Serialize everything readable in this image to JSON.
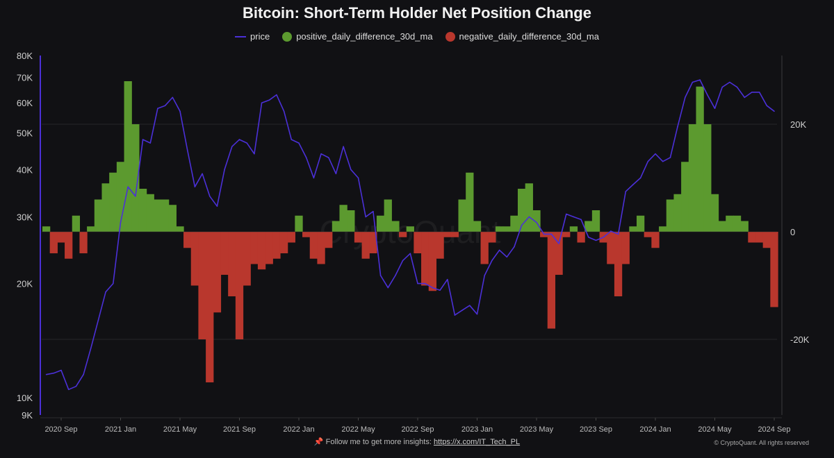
{
  "chart_data": {
    "type": "bar+line",
    "title": "Bitcoin: Short-Term Holder Net Position Change",
    "legend": [
      {
        "name": "price",
        "color": "#4b30d8"
      },
      {
        "name": "positive_daily_difference_30d_ma",
        "color": "#5c9a2f"
      },
      {
        "name": "negative_daily_difference_30d_ma",
        "color": "#b9372d"
      }
    ],
    "legend_placement": "top-center",
    "x_start": "2020-08-01",
    "x_step": "half-month",
    "x_ticks": [
      "2020 Sep",
      "2021 Jan",
      "2021 May",
      "2021 Sep",
      "2022 Jan",
      "2022 May",
      "2022 Sep",
      "2023 Jan",
      "2023 May",
      "2023 Sep",
      "2024 Jan",
      "2024 May",
      "2024 Sep"
    ],
    "left_axis": {
      "label": "price",
      "scale": "log",
      "range": [
        9000,
        80000
      ],
      "ticks": [
        80000,
        70000,
        60000,
        50000,
        40000,
        30000,
        20000,
        10000,
        9000
      ],
      "tick_labels": [
        "80K",
        "70K",
        "60K",
        "50K",
        "40K",
        "30K",
        "20K",
        "10K",
        "9K"
      ]
    },
    "right_axis": {
      "scale": "linear",
      "range_k": [
        -33,
        33
      ],
      "ticks": [
        20,
        0,
        -20
      ],
      "tick_labels": [
        "20K",
        "0",
        "-20K"
      ]
    },
    "price_k": [
      11.5,
      11.6,
      11.8,
      10.5,
      10.7,
      11.5,
      13.5,
      16,
      19,
      20,
      29,
      36,
      34,
      48,
      47,
      58,
      59,
      62,
      57,
      45,
      36,
      39,
      34,
      32,
      40,
      46,
      48,
      47,
      44,
      60,
      61,
      63,
      57,
      48,
      47,
      43,
      38,
      44,
      43,
      39,
      46,
      40,
      38,
      30,
      31,
      21,
      19.5,
      21,
      23,
      24,
      20,
      20,
      19.5,
      19.2,
      20.5,
      16.5,
      17,
      17.5,
      16.6,
      21,
      23,
      24.5,
      23.5,
      25,
      28.5,
      30,
      29,
      27,
      27,
      25.5,
      30.5,
      30,
      29.5,
      26.5,
      26,
      26.5,
      27.5,
      27,
      35,
      36.5,
      38,
      42,
      44,
      42,
      43,
      52,
      62,
      68,
      69,
      63,
      58,
      66,
      68,
      66,
      62,
      64,
      64,
      59,
      57
    ],
    "net_change_k": [
      1,
      -4,
      -2,
      -5,
      3,
      -4,
      1,
      6,
      9,
      11,
      13,
      28,
      20,
      8,
      7,
      6,
      6,
      5,
      1,
      -3,
      -10,
      -20,
      -28,
      -15,
      -8,
      -12,
      -20,
      -10,
      -6,
      -7,
      -6,
      -5,
      -4,
      -2,
      3,
      -1,
      -5,
      -6,
      -3,
      2,
      5,
      4,
      -2,
      -5,
      -4,
      3,
      6,
      2,
      -1,
      1,
      -4,
      -10,
      -11,
      -5,
      -1,
      -1,
      6,
      11,
      2,
      -6,
      -2,
      1,
      1,
      3,
      8,
      9,
      4,
      -1,
      -18,
      -8,
      -1,
      1,
      -2,
      2,
      4,
      -2,
      -6,
      -12,
      -6,
      1,
      3,
      -1,
      -3,
      1,
      6,
      7,
      13,
      20,
      27,
      20,
      7,
      2,
      3,
      3,
      2,
      -2,
      -2,
      -3,
      -14
    ],
    "watermark": "CryptoQuant"
  },
  "footer": {
    "text": "Follow me to get more insights: ",
    "link": "https://x.com/IT_Tech_PL",
    "pin_icon": "📌",
    "copyright": "© CryptoQuant. All rights reserved"
  }
}
